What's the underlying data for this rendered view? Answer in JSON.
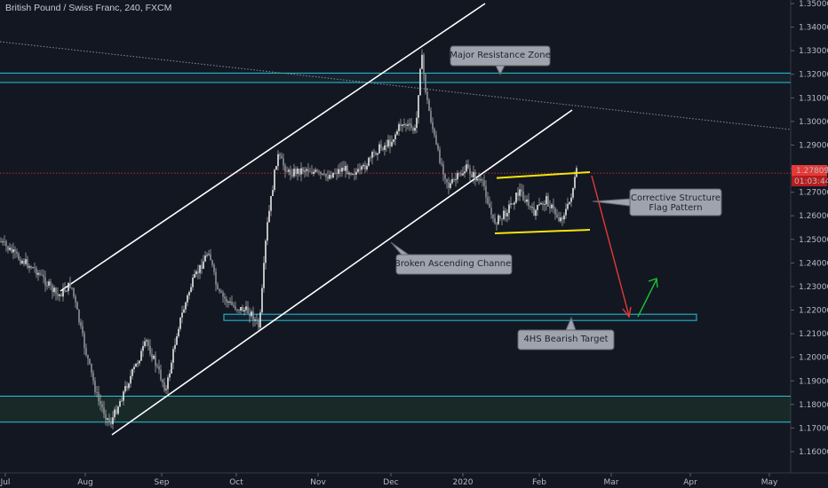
{
  "header": {
    "title": "British Pound / Swiss Franc, 240, FXCM"
  },
  "price_tags": {
    "last_price": "1.27809",
    "countdown": "01:03:44"
  },
  "colors": {
    "background": "#131722",
    "candle": "#d9d9d9",
    "channel": "#ffffff",
    "zone": "#26c6da",
    "flag": "#f5e50b",
    "down_arrow": "#e53935",
    "up_arrow": "#19c232",
    "last_price_tag": "#e53935",
    "callout_bg": "#9ea3ad"
  },
  "annotations": {
    "resistance": "Major Resistance Zone",
    "corrective_1": "Corrective Structure",
    "corrective_2": "Flag Pattern",
    "broken_channel": "Broken Ascending Channel",
    "target": "4HS Bearish Target"
  },
  "chart_data": {
    "type": "line",
    "symbol": "GBPCHF",
    "timeframe": "240",
    "ylim": [
      1.155,
      1.35
    ],
    "y_ticks": [
      "1.35000",
      "1.34000",
      "1.33000",
      "1.32000",
      "1.31000",
      "1.30000",
      "1.29000",
      "1.28000",
      "1.27000",
      "1.26000",
      "1.25000",
      "1.24000",
      "1.23000",
      "1.22000",
      "1.21000",
      "1.20000",
      "1.19000",
      "1.18000",
      "1.17000",
      "1.16000"
    ],
    "x_ticks": [
      "Jul",
      "Aug",
      "Sep",
      "Oct",
      "Nov",
      "Dec",
      "2020",
      "Feb",
      "Mar",
      "Apr",
      "May"
    ],
    "series": [
      {
        "values": [
          [
            "Jul",
            1.245
          ],
          [
            "Jul",
            1.24
          ],
          [
            "Jul",
            1.235
          ],
          [
            "Jul",
            1.228
          ],
          [
            "Aug",
            1.205
          ],
          [
            "Aug",
            1.18
          ],
          [
            "Aug",
            1.17
          ],
          [
            "Aug",
            1.19
          ],
          [
            "Aug",
            1.21
          ],
          [
            "Sep",
            1.195
          ],
          [
            "Sep",
            1.225
          ],
          [
            "Sep",
            1.245
          ],
          [
            "Sep",
            1.23
          ],
          [
            "Oct",
            1.22
          ],
          [
            "Oct",
            1.215
          ],
          [
            "Oct",
            1.25
          ],
          [
            "Oct",
            1.275
          ],
          [
            "Oct",
            1.285
          ],
          [
            "Oct",
            1.28
          ],
          [
            "Nov",
            1.278
          ],
          [
            "Nov",
            1.283
          ],
          [
            "Nov",
            1.28
          ],
          [
            "Nov",
            1.285
          ],
          [
            "Dec",
            1.3
          ],
          [
            "Dec",
            1.305
          ],
          [
            "Dec",
            1.33
          ],
          [
            "Dec",
            1.285
          ],
          [
            "Dec",
            1.275
          ],
          [
            "2020",
            1.28
          ],
          [
            "2020",
            1.265
          ],
          [
            "2020",
            1.255
          ],
          [
            "2020",
            1.27
          ],
          [
            "Feb",
            1.26
          ],
          [
            "Feb",
            1.265
          ],
          [
            "Feb",
            1.27
          ],
          [
            "Feb",
            1.278
          ]
        ]
      }
    ],
    "levels": {
      "resistance_zone": [
        1.3165,
        1.3205
      ],
      "support_zone": [
        1.1725,
        1.1835
      ],
      "target_zone": [
        1.2165,
        1.2175
      ],
      "flag_upper": 1.276,
      "flag_lower": 1.254,
      "last_price": 1.27809
    },
    "projection": {
      "from": 1.2775,
      "down_to": 1.2165,
      "up_to": 1.234
    }
  }
}
